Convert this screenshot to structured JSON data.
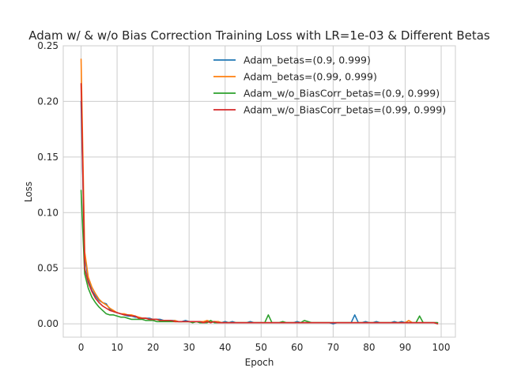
{
  "chart_data": {
    "type": "line",
    "title": "Adam w/ & w/o Bias Correction Training Loss with LR=1e-03 & Different Betas",
    "xlabel": "Epoch",
    "ylabel": "Loss",
    "xlim": [
      -4.95,
      103.95
    ],
    "ylim": [
      -0.012,
      0.25
    ],
    "xticks": [
      0,
      10,
      20,
      30,
      40,
      50,
      60,
      70,
      80,
      90,
      100
    ],
    "yticks": [
      0.0,
      0.05,
      0.1,
      0.15,
      0.2,
      0.25
    ],
    "ytick_labels": [
      "0.00",
      "0.05",
      "0.10",
      "0.15",
      "0.20",
      "0.25"
    ],
    "grid": true,
    "legend_position": "top-right",
    "x": [
      0,
      1,
      2,
      3,
      4,
      5,
      6,
      7,
      8,
      9,
      10,
      11,
      12,
      13,
      14,
      15,
      16,
      17,
      18,
      19,
      20,
      21,
      22,
      23,
      24,
      25,
      26,
      27,
      28,
      29,
      30,
      31,
      32,
      33,
      34,
      35,
      36,
      37,
      38,
      39,
      40,
      41,
      42,
      43,
      44,
      45,
      46,
      47,
      48,
      49,
      50,
      51,
      52,
      53,
      54,
      55,
      56,
      57,
      58,
      59,
      60,
      61,
      62,
      63,
      64,
      65,
      66,
      67,
      68,
      69,
      70,
      71,
      72,
      73,
      74,
      75,
      76,
      77,
      78,
      79,
      80,
      81,
      82,
      83,
      84,
      85,
      86,
      87,
      88,
      89,
      90,
      91,
      92,
      93,
      94,
      95,
      96,
      97,
      98,
      99
    ],
    "series": [
      {
        "name": "Adam_betas=(0.9, 0.999)",
        "color": "#1f77b4",
        "values": [
          0.2,
          0.06,
          0.04,
          0.03,
          0.025,
          0.021,
          0.019,
          0.018,
          0.013,
          0.011,
          0.01,
          0.009,
          0.008,
          0.007,
          0.007,
          0.006,
          0.006,
          0.005,
          0.005,
          0.005,
          0.004,
          0.004,
          0.004,
          0.003,
          0.003,
          0.003,
          0.003,
          0.002,
          0.002,
          0.003,
          0.002,
          0.002,
          0.002,
          0.002,
          0.002,
          0.002,
          0.002,
          0.002,
          0.002,
          0.001,
          0.002,
          0.001,
          0.002,
          0.001,
          0.001,
          0.001,
          0.001,
          0.002,
          0.001,
          0.001,
          0.001,
          0.001,
          0.001,
          0.001,
          0.001,
          0.001,
          0.001,
          0.001,
          0.001,
          0.001,
          0.002,
          0.001,
          0.001,
          0.001,
          0.001,
          0.001,
          0.001,
          0.001,
          0.001,
          0.001,
          0.0,
          0.001,
          0.001,
          0.001,
          0.001,
          0.001,
          0.008,
          0.001,
          0.001,
          0.002,
          0.001,
          0.001,
          0.002,
          0.001,
          0.001,
          0.001,
          0.001,
          0.002,
          0.001,
          0.002,
          0.001,
          0.001,
          0.001,
          0.001,
          0.001,
          0.001,
          0.001,
          0.001,
          0.001,
          0.001
        ]
      },
      {
        "name": "Adam_betas=(0.99, 0.999)",
        "color": "#ff7f0e",
        "values": [
          0.238,
          0.065,
          0.042,
          0.033,
          0.027,
          0.022,
          0.019,
          0.017,
          0.014,
          0.012,
          0.01,
          0.009,
          0.009,
          0.008,
          0.008,
          0.007,
          0.006,
          0.005,
          0.005,
          0.004,
          0.004,
          0.004,
          0.003,
          0.003,
          0.003,
          0.002,
          0.003,
          0.002,
          0.002,
          0.002,
          0.002,
          0.002,
          0.002,
          0.002,
          0.002,
          0.003,
          0.002,
          0.002,
          0.002,
          0.001,
          0.001,
          0.001,
          0.001,
          0.001,
          0.001,
          0.001,
          0.001,
          0.001,
          0.001,
          0.001,
          0.001,
          0.001,
          0.001,
          0.001,
          0.001,
          0.001,
          0.001,
          0.001,
          0.001,
          0.001,
          0.001,
          0.001,
          0.001,
          0.001,
          0.001,
          0.001,
          0.001,
          0.001,
          0.001,
          0.001,
          0.001,
          0.001,
          0.001,
          0.001,
          0.001,
          0.001,
          0.001,
          0.001,
          0.001,
          0.001,
          0.001,
          0.001,
          0.001,
          0.001,
          0.001,
          0.001,
          0.001,
          0.001,
          0.001,
          0.001,
          0.001,
          0.003,
          0.001,
          0.001,
          0.001,
          0.001,
          0.001,
          0.001,
          0.001,
          0.001
        ]
      },
      {
        "name": "Adam_w/o_BiasCorr_betas=(0.9, 0.999)",
        "color": "#2ca02c",
        "values": [
          0.12,
          0.045,
          0.032,
          0.024,
          0.019,
          0.015,
          0.012,
          0.009,
          0.008,
          0.008,
          0.007,
          0.006,
          0.006,
          0.005,
          0.004,
          0.004,
          0.004,
          0.004,
          0.003,
          0.003,
          0.003,
          0.002,
          0.002,
          0.002,
          0.002,
          0.002,
          0.002,
          0.002,
          0.002,
          0.002,
          0.002,
          0.001,
          0.002,
          0.001,
          0.001,
          0.001,
          0.003,
          0.001,
          0.001,
          0.001,
          0.001,
          0.001,
          0.001,
          0.001,
          0.001,
          0.001,
          0.001,
          0.001,
          0.001,
          0.001,
          0.001,
          0.001,
          0.008,
          0.001,
          0.001,
          0.001,
          0.002,
          0.001,
          0.001,
          0.001,
          0.001,
          0.001,
          0.003,
          0.002,
          0.001,
          0.001,
          0.001,
          0.001,
          0.001,
          0.001,
          0.001,
          0.001,
          0.001,
          0.001,
          0.001,
          0.001,
          0.001,
          0.001,
          0.001,
          0.001,
          0.001,
          0.001,
          0.001,
          0.001,
          0.001,
          0.001,
          0.001,
          0.001,
          0.001,
          0.001,
          0.001,
          0.001,
          0.001,
          0.001,
          0.007,
          0.001,
          0.001,
          0.001,
          0.001,
          0.001
        ]
      },
      {
        "name": "Adam_w/o_BiasCorr_betas=(0.99, 0.999)",
        "color": "#d62728",
        "values": [
          0.216,
          0.05,
          0.037,
          0.029,
          0.023,
          0.019,
          0.016,
          0.014,
          0.012,
          0.011,
          0.01,
          0.009,
          0.008,
          0.008,
          0.007,
          0.007,
          0.005,
          0.005,
          0.005,
          0.004,
          0.004,
          0.004,
          0.003,
          0.003,
          0.003,
          0.003,
          0.002,
          0.002,
          0.002,
          0.002,
          0.002,
          0.002,
          0.002,
          0.002,
          0.001,
          0.002,
          0.001,
          0.002,
          0.001,
          0.001,
          0.001,
          0.001,
          0.001,
          0.001,
          0.001,
          0.001,
          0.001,
          0.001,
          0.001,
          0.001,
          0.001,
          0.001,
          0.001,
          0.001,
          0.001,
          0.001,
          0.001,
          0.001,
          0.001,
          0.001,
          0.001,
          0.001,
          0.001,
          0.001,
          0.001,
          0.001,
          0.001,
          0.001,
          0.001,
          0.001,
          0.001,
          0.001,
          0.001,
          0.001,
          0.001,
          0.001,
          0.001,
          0.001,
          0.001,
          0.001,
          0.001,
          0.001,
          0.001,
          0.001,
          0.001,
          0.001,
          0.001,
          0.001,
          0.001,
          0.001,
          0.001,
          0.001,
          0.001,
          0.001,
          0.001,
          0.001,
          0.001,
          0.001,
          0.001,
          0.0
        ]
      }
    ]
  }
}
